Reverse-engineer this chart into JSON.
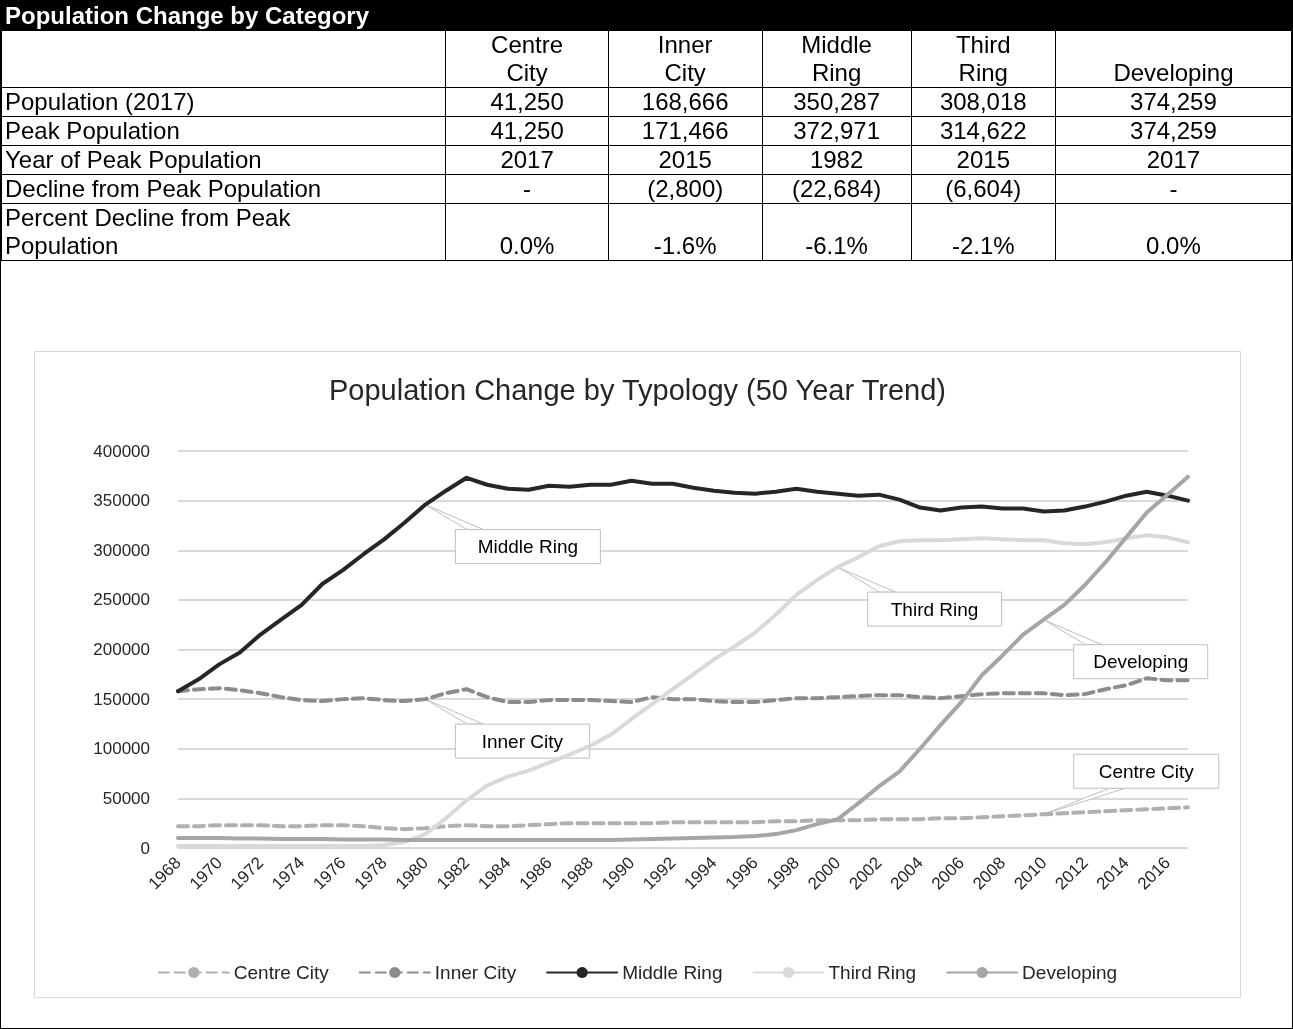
{
  "chart_data": [
    {
      "type": "other",
      "title": "Population Change by Category",
      "categories": [
        "Centre City",
        "Inner City",
        "Middle Ring",
        "Third Ring",
        "Developing"
      ],
      "annotations": [
        "Population (2017)",
        "41,250",
        "168,666",
        "350,287",
        "308,018",
        "374,259",
        "Peak Population",
        "41,250",
        "171,466",
        "372,971",
        "314,622",
        "374,259",
        "Year of Peak Population",
        "2017",
        "2015",
        "1982",
        "2015",
        "2017",
        "Decline from Peak Population",
        "-",
        "(2,800)",
        "(22,684)",
        "(6,604)",
        "-",
        "Percent Decline from Peak Population",
        "0.0%",
        "-1.6%",
        "-6.1%",
        "-2.1%",
        "0.0%"
      ]
    },
    {
      "type": "line",
      "title": "Population Change by Typology (50 Year Trend)",
      "categories": [
        "1968",
        null,
        "1970",
        null,
        "1972",
        null,
        "1974",
        null,
        "1976",
        null,
        "1978",
        null,
        "1980",
        null,
        "1982",
        null,
        "1984",
        null,
        "1986",
        null,
        "1988",
        null,
        "1990",
        null,
        "1992",
        null,
        "1994",
        null,
        "1996",
        null,
        "1998",
        null,
        "2000",
        null,
        "2002",
        null,
        "2004",
        null,
        "2006",
        null,
        "2008",
        null,
        "2010",
        null,
        "2012",
        null,
        "2014",
        null,
        "2016",
        null
      ],
      "ylim": [
        0,
        400000
      ],
      "yticks": [
        0,
        50000,
        100000,
        150000,
        200000,
        250000,
        300000,
        350000,
        400000
      ],
      "grid": "y",
      "legend": "bottom",
      "series": [
        {
          "name": "Centre City",
          "color": "#b0b0b0",
          "line_style": "dashed",
          "values": [
            22000,
            22000,
            23000,
            23000,
            23000,
            22000,
            22000,
            23000,
            23000,
            22000,
            20000,
            19000,
            20000,
            22000,
            23000,
            22000,
            22000,
            23000,
            24000,
            25000,
            25000,
            25000,
            25000,
            25000,
            26000,
            26000,
            26000,
            26000,
            26000,
            27000,
            27000,
            28000,
            28000,
            28000,
            29000,
            29000,
            29000,
            30000,
            30000,
            31000,
            32000,
            33000,
            34000,
            35000,
            36000,
            37000,
            38000,
            39000,
            40000,
            41000
          ]
        },
        {
          "name": "Inner City",
          "color": "#8c8c8c",
          "line_style": "dashed",
          "values": [
            158000,
            160000,
            161000,
            159000,
            156000,
            152000,
            149000,
            148000,
            150000,
            151000,
            149000,
            148000,
            150000,
            156000,
            160000,
            152000,
            147000,
            147000,
            149000,
            149000,
            149000,
            148000,
            147000,
            152000,
            150000,
            150000,
            148000,
            147000,
            147000,
            149000,
            151000,
            151000,
            152000,
            153000,
            154000,
            154000,
            152000,
            151000,
            153000,
            155000,
            156000,
            156000,
            156000,
            154000,
            155000,
            160000,
            164000,
            171000,
            169000,
            169000
          ]
        },
        {
          "name": "Middle Ring",
          "color": "#262626",
          "line_style": "solid",
          "values": [
            158000,
            170000,
            185000,
            197000,
            215000,
            230000,
            245000,
            266000,
            280000,
            296000,
            311000,
            328000,
            346000,
            360000,
            373000,
            366000,
            362000,
            361000,
            365000,
            364000,
            366000,
            366000,
            370000,
            367000,
            367000,
            363000,
            360000,
            358000,
            357000,
            359000,
            362000,
            359000,
            357000,
            355000,
            356000,
            351000,
            343000,
            340000,
            343000,
            344000,
            342000,
            342000,
            339000,
            340000,
            344000,
            349000,
            355000,
            359000,
            355000,
            350000
          ]
        },
        {
          "name": "Third Ring",
          "color": "#d9d9d9",
          "line_style": "solid",
          "values": [
            2000,
            2000,
            2000,
            2000,
            2000,
            2000,
            2000,
            2000,
            2000,
            2000,
            3000,
            6000,
            14000,
            30000,
            48000,
            63000,
            72000,
            78000,
            86000,
            94000,
            103000,
            114000,
            130000,
            145000,
            160000,
            175000,
            190000,
            203000,
            217000,
            235000,
            255000,
            270000,
            283000,
            293000,
            304000,
            309000,
            310000,
            310000,
            311000,
            312000,
            311000,
            310000,
            310000,
            307000,
            306000,
            308000,
            312000,
            315000,
            313000,
            308000
          ]
        },
        {
          "name": "Developing",
          "color": "#a6a6a6",
          "line_style": "solid",
          "values": [
            10000,
            10000,
            10000,
            9500,
            9500,
            9000,
            9000,
            9000,
            8500,
            8500,
            8500,
            8000,
            8000,
            8000,
            8000,
            8000,
            8000,
            8000,
            8000,
            8000,
            8000,
            8000,
            8500,
            9000,
            9500,
            10000,
            10500,
            11000,
            12000,
            14000,
            18000,
            24000,
            29000,
            45000,
            62000,
            77000,
            100000,
            124000,
            147000,
            174000,
            194000,
            215000,
            230000,
            245000,
            265000,
            288000,
            313000,
            338000,
            356000,
            374000
          ]
        }
      ],
      "annotations": [
        {
          "text": "Middle Ring",
          "x": "1980",
          "y": 346000
        },
        {
          "text": "Inner City",
          "x": "1980",
          "y": 150000
        },
        {
          "text": "Third Ring",
          "x": "2000",
          "y": 283000
        },
        {
          "text": "Developing",
          "x": "2010",
          "y": 230000
        },
        {
          "text": "Centre City",
          "x": "2010",
          "y": 34000
        }
      ]
    }
  ]
}
